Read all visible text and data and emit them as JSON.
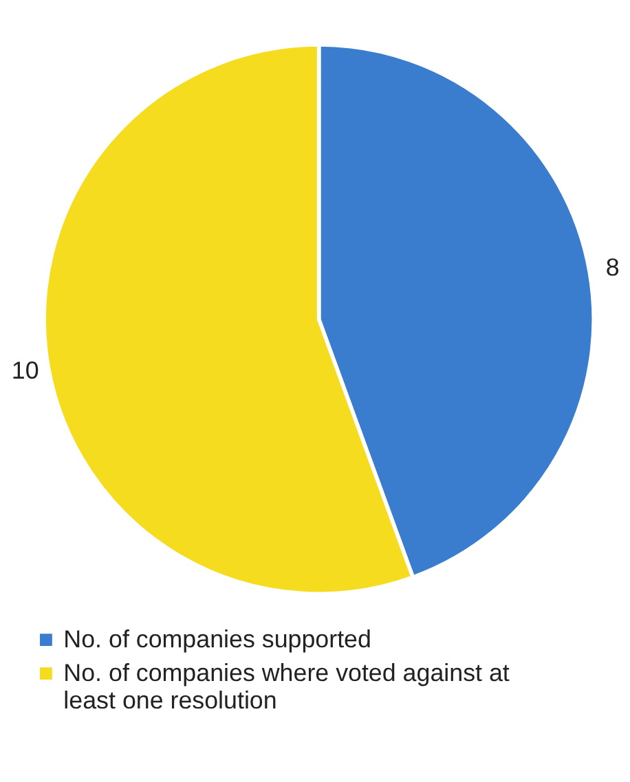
{
  "chart_data": {
    "type": "pie",
    "categories": [
      "No. of companies supported",
      "No. of companies where voted against at least one resolution"
    ],
    "values": [
      8,
      10
    ],
    "colors": [
      "#3a7dcf",
      "#f6dc1f"
    ],
    "data_labels": true,
    "legend": "bottom"
  }
}
